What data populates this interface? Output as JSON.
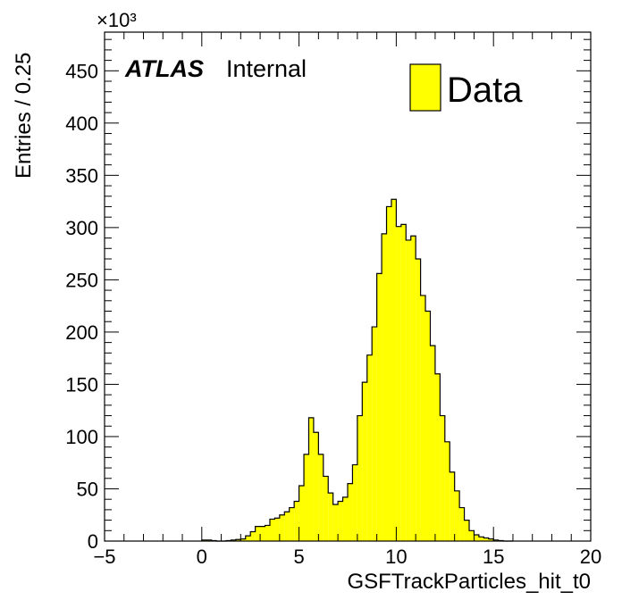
{
  "chart_data": {
    "type": "histogram",
    "xlabel": "GSFTrackParticles_hit_t0",
    "ylabel": "Entries / 0.25",
    "y_multiplier": "×10³",
    "xlim": [
      -5,
      20
    ],
    "ylim": [
      0,
      487
    ],
    "bin_width": 0.25,
    "x_ticks": [
      "−5",
      "0",
      "5",
      "10",
      "15",
      "20"
    ],
    "x_tick_values": [
      -5,
      0,
      5,
      10,
      15,
      20
    ],
    "y_ticks": [
      "0",
      "50",
      "100",
      "150",
      "200",
      "250",
      "300",
      "350",
      "400",
      "450"
    ],
    "y_tick_values": [
      0,
      50,
      100,
      150,
      200,
      250,
      300,
      350,
      400,
      450
    ],
    "fill_color": "#ffff00",
    "line_color": "#000000",
    "atlas_label": "ATLAS",
    "atlas_sublabel": "Internal",
    "legend": {
      "position": "top-right",
      "entries": [
        "Data"
      ]
    },
    "bins": {
      "x_low": [
        0.0,
        0.25,
        0.5,
        0.75,
        1.0,
        1.25,
        1.5,
        1.75,
        2.0,
        2.25,
        2.5,
        2.75,
        3.0,
        3.25,
        3.5,
        3.75,
        4.0,
        4.25,
        4.5,
        4.75,
        5.0,
        5.25,
        5.5,
        5.75,
        6.0,
        6.25,
        6.5,
        6.75,
        7.0,
        7.25,
        7.5,
        7.75,
        8.0,
        8.25,
        8.5,
        8.75,
        9.0,
        9.25,
        9.5,
        9.75,
        10.0,
        10.25,
        10.5,
        10.75,
        11.0,
        11.25,
        11.5,
        11.75,
        12.0,
        12.25,
        12.5,
        12.75,
        13.0,
        13.25,
        13.5,
        13.75,
        14.0,
        14.25,
        14.5,
        14.75,
        15.0,
        15.25,
        15.5,
        15.75
      ],
      "values": [
        1,
        1,
        0.5,
        0,
        0,
        0.5,
        1,
        1.5,
        2,
        5,
        9,
        14,
        14,
        15,
        21,
        22,
        25,
        28,
        32,
        38,
        53,
        83,
        118,
        104,
        83,
        62,
        46,
        35,
        38,
        42,
        55,
        73,
        120,
        152,
        178,
        205,
        256,
        294,
        320,
        327,
        301,
        303,
        288,
        292,
        270,
        235,
        220,
        187,
        160,
        120,
        95,
        66,
        48,
        32,
        20,
        10,
        6,
        4,
        3,
        2,
        1,
        0.5,
        0,
        0
      ]
    }
  }
}
